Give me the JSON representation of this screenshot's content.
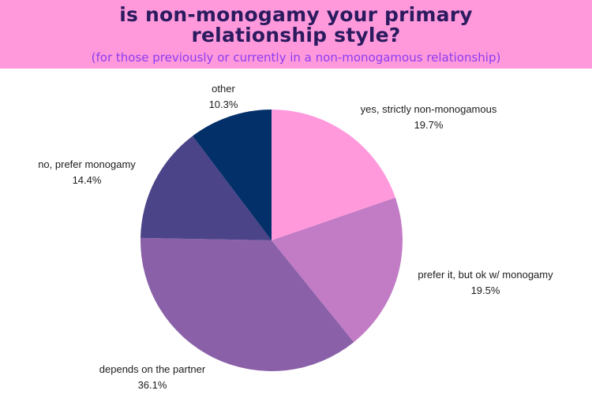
{
  "header": {
    "title_line1": "is non-monogamy your primary",
    "title_line2": "relationship style?",
    "subtitle": "(for those previously or currently in a non-monogamous relationship)"
  },
  "colors": {
    "header_bg": "#ff99dc",
    "title": "#2a1a5e",
    "subtitle": "#8b3cf0"
  },
  "chart_data": {
    "type": "pie",
    "title": "is non-monogamy your primary relationship style?",
    "subtitle": "(for those previously or currently in a non-monogamous relationship)",
    "unit": "%",
    "slices": [
      {
        "label": "yes, strictly non-monogamous",
        "value": 19.7,
        "display": "19.7%",
        "color": "#ff99dc"
      },
      {
        "label": "prefer it, but ok w/ monogamy",
        "value": 19.5,
        "display": "19.5%",
        "color": "#c27bc5"
      },
      {
        "label": "depends on the partner",
        "value": 36.1,
        "display": "36.1%",
        "color": "#8a60a8"
      },
      {
        "label": "no, prefer monogamy",
        "value": 14.4,
        "display": "14.4%",
        "color": "#4b4488"
      },
      {
        "label": "other",
        "value": 10.3,
        "display": "10.3%",
        "color": "#04306a"
      }
    ],
    "start_angle": "12 o'clock",
    "direction": "clockwise",
    "legend": "none"
  }
}
